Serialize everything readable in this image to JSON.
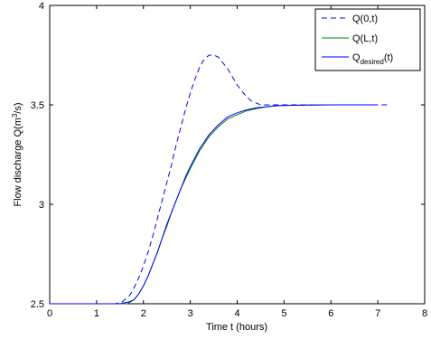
{
  "chart_data": {
    "type": "line",
    "title": "",
    "xlabel": "Time t (hours)",
    "ylabel_main": "Flow discharge Q(m",
    "ylabel_sup": "3",
    "ylabel_tail": "/s)",
    "xlim": [
      0,
      8
    ],
    "ylim": [
      2.5,
      4
    ],
    "xticks": [
      0,
      1,
      2,
      3,
      4,
      5,
      6,
      7,
      8
    ],
    "yticks": [
      2.5,
      3,
      3.5,
      4
    ],
    "xtick_labels": [
      "0",
      "1",
      "2",
      "3",
      "4",
      "5",
      "6",
      "7",
      "8"
    ],
    "ytick_labels": [
      "2.5",
      "3",
      "3.5",
      "4"
    ],
    "grid": false,
    "legend_placement": "top-right",
    "series": [
      {
        "name": "Q(0,t)",
        "legend_main": "Q(0,t)",
        "legend_sub": "",
        "legend_tail": "",
        "color": "#0000ff",
        "dash": "dashed",
        "x": [
          0,
          1.4,
          1.55,
          1.7,
          1.8,
          1.9,
          2.0,
          2.1,
          2.2,
          2.3,
          2.4,
          2.5,
          2.6,
          2.7,
          2.8,
          2.9,
          3.0,
          3.1,
          3.2,
          3.3,
          3.4,
          3.5,
          3.6,
          3.7,
          3.8,
          3.9,
          4.0,
          4.1,
          4.2,
          4.3,
          4.4,
          4.5,
          4.6,
          4.8,
          5.0,
          5.5,
          6.0,
          6.5,
          7.0,
          7.2
        ],
        "y": [
          2.5,
          2.5,
          2.51,
          2.54,
          2.58,
          2.63,
          2.69,
          2.76,
          2.84,
          2.93,
          3.02,
          3.11,
          3.2,
          3.3,
          3.39,
          3.48,
          3.56,
          3.63,
          3.69,
          3.73,
          3.75,
          3.75,
          3.74,
          3.71,
          3.68,
          3.64,
          3.6,
          3.57,
          3.54,
          3.52,
          3.51,
          3.5,
          3.5,
          3.5,
          3.5,
          3.5,
          3.5,
          3.5,
          3.5,
          3.5
        ]
      },
      {
        "name": "Q(L,t)",
        "legend_main": "Q(L,t)",
        "legend_sub": "",
        "legend_tail": "",
        "color": "#008000",
        "dash": "solid",
        "x": [
          0,
          1.5,
          1.65,
          1.8,
          1.9,
          2.0,
          2.1,
          2.2,
          2.3,
          2.4,
          2.5,
          2.6,
          2.7,
          2.8,
          2.9,
          3.0,
          3.2,
          3.4,
          3.6,
          3.8,
          4.0,
          4.2,
          4.4,
          4.6,
          4.8,
          5.0,
          5.5,
          6.0,
          6.5,
          7.0
        ],
        "y": [
          2.5,
          2.5,
          2.5,
          2.52,
          2.55,
          2.59,
          2.64,
          2.7,
          2.76,
          2.83,
          2.89,
          2.96,
          3.02,
          3.08,
          3.13,
          3.18,
          3.27,
          3.34,
          3.39,
          3.43,
          3.45,
          3.47,
          3.48,
          3.49,
          3.495,
          3.497,
          3.499,
          3.5,
          3.5,
          3.5
        ]
      },
      {
        "name": "Q_desired(t)",
        "legend_main": "Q",
        "legend_sub": "desired",
        "legend_tail": "(t)",
        "color": "#0000ff",
        "dash": "solid",
        "x": [
          0,
          1.5,
          1.6,
          1.7,
          1.8,
          1.9,
          2.0,
          2.1,
          2.2,
          2.3,
          2.4,
          2.5,
          2.6,
          2.7,
          2.8,
          2.9,
          3.0,
          3.2,
          3.4,
          3.6,
          3.8,
          4.0,
          4.2,
          4.4,
          4.6,
          4.8,
          5.0,
          5.5,
          6.0,
          6.5,
          7.0
        ],
        "y": [
          2.5,
          2.5,
          2.505,
          2.51,
          2.52,
          2.55,
          2.59,
          2.64,
          2.7,
          2.76,
          2.83,
          2.9,
          2.96,
          3.02,
          3.08,
          3.14,
          3.19,
          3.28,
          3.35,
          3.4,
          3.44,
          3.46,
          3.475,
          3.485,
          3.49,
          3.495,
          3.497,
          3.499,
          3.5,
          3.5,
          3.5
        ]
      }
    ]
  }
}
